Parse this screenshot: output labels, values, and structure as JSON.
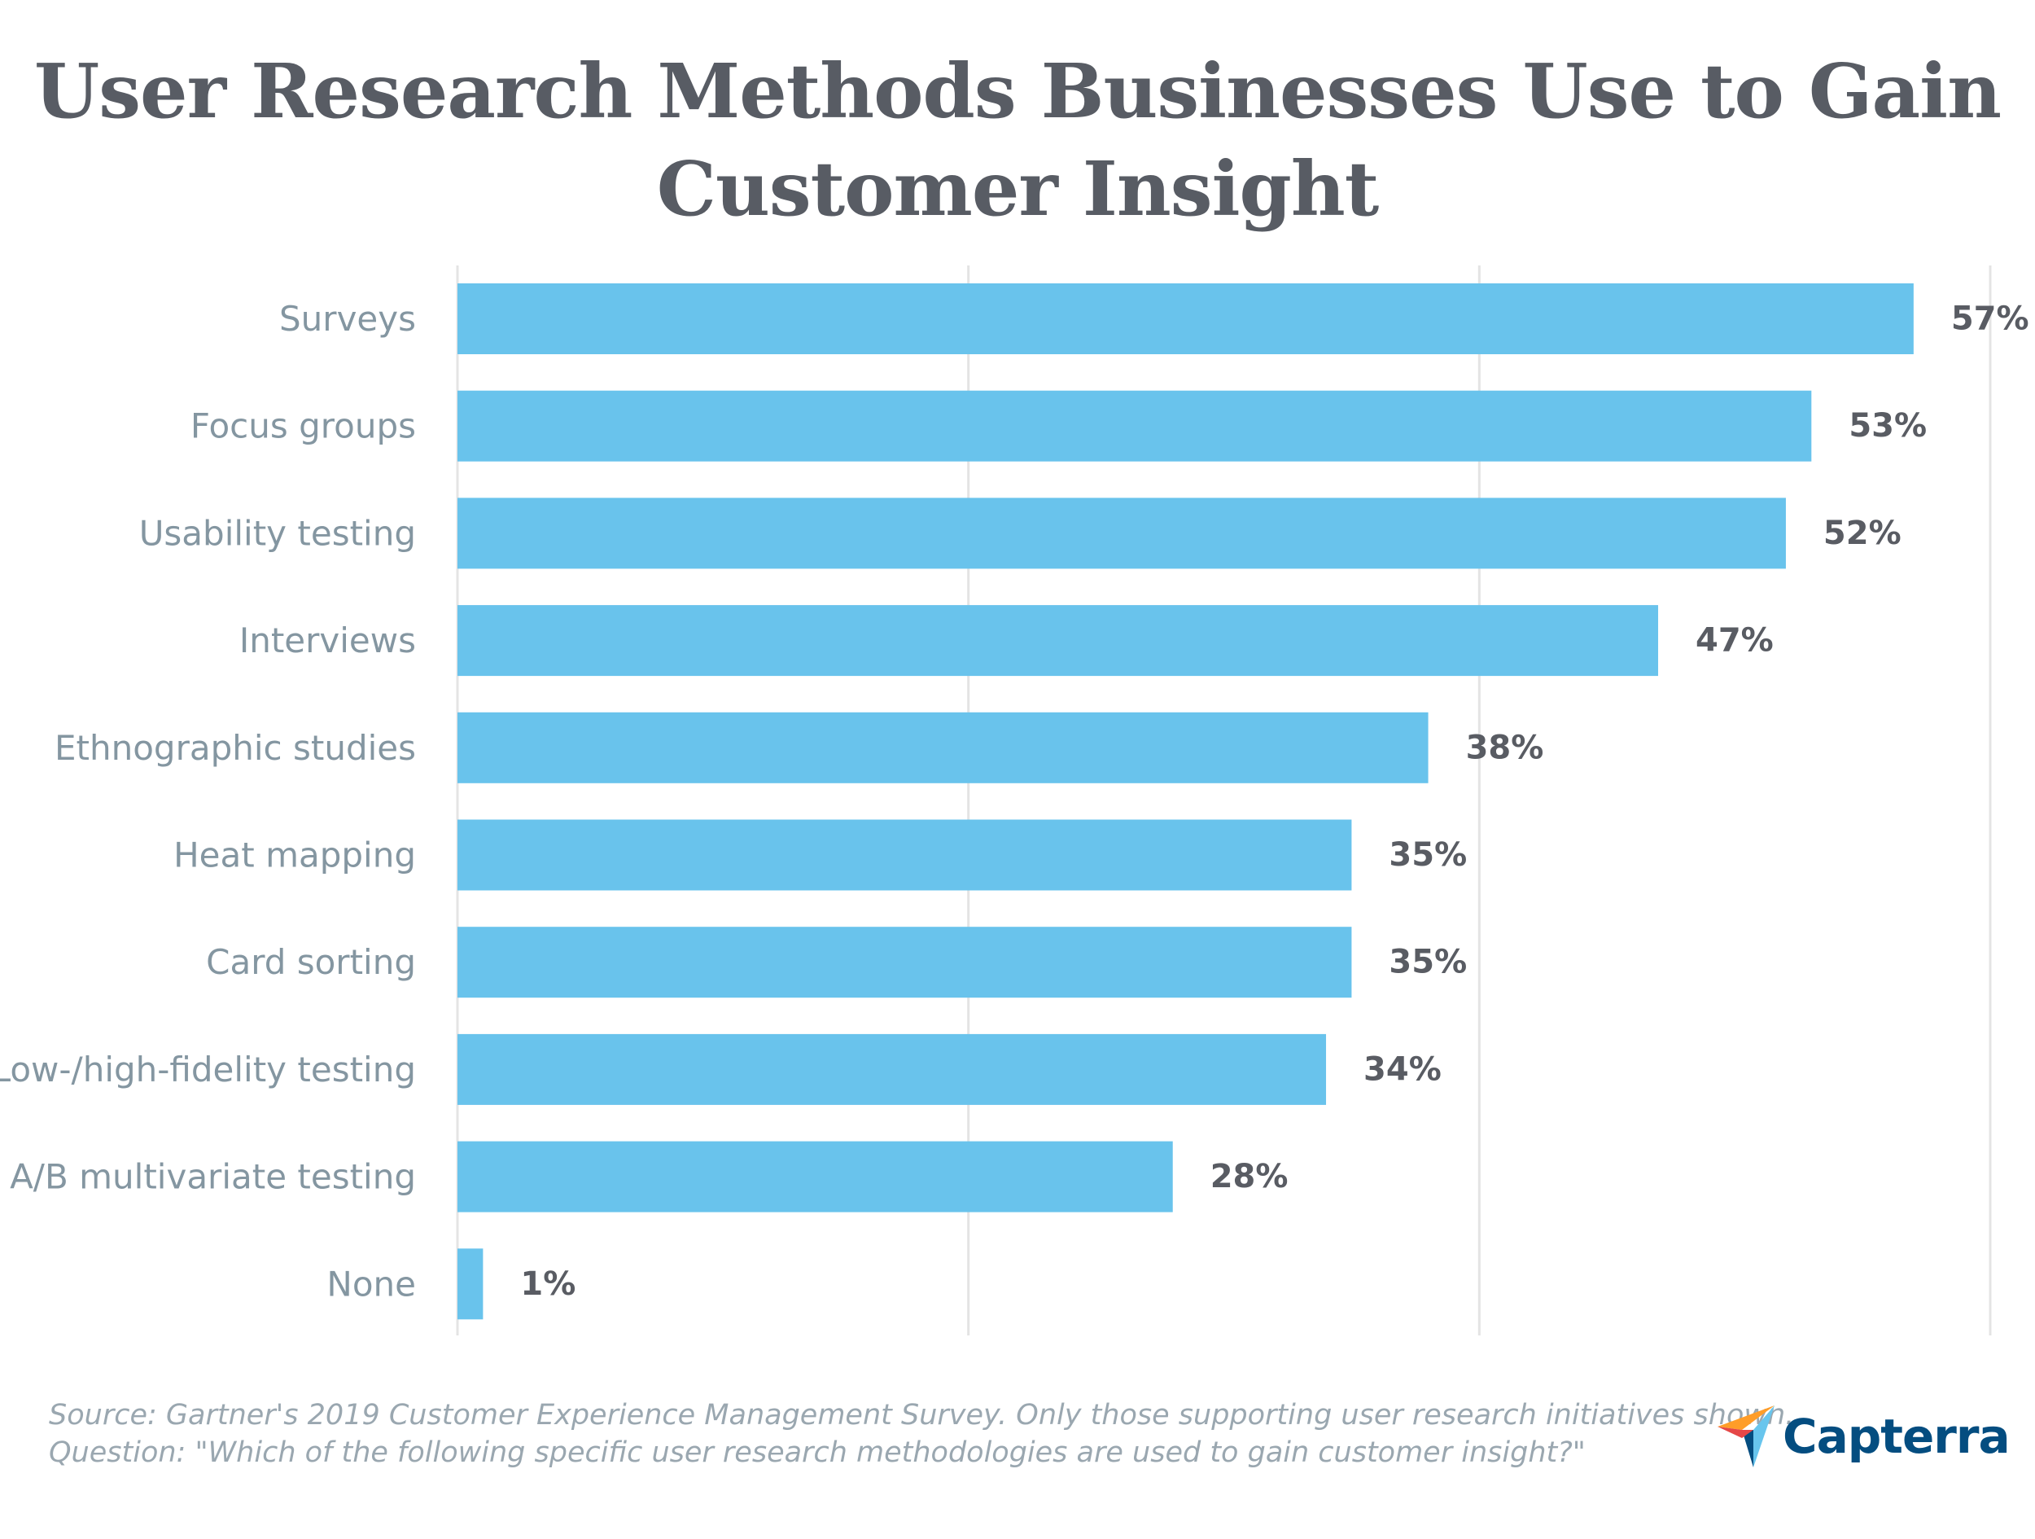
{
  "title": "User Research Methods Businesses Use to Gain Customer Insight",
  "chart_data": {
    "type": "bar",
    "orientation": "horizontal",
    "categories": [
      "Surveys",
      "Focus groups",
      "Usability testing",
      "Interviews",
      "Ethnographic studies",
      "Heat mapping",
      "Card sorting",
      "Low-/high-fidelity testing",
      "A/B multivariate testing",
      "None"
    ],
    "values": [
      57,
      53,
      52,
      47,
      38,
      35,
      35,
      34,
      28,
      1
    ],
    "value_labels": [
      "57%",
      "53%",
      "52%",
      "47%",
      "38%",
      "35%",
      "35%",
      "34%",
      "28%",
      "1%"
    ],
    "xlim": [
      0,
      60
    ],
    "grid": true,
    "bar_color": "#69c3ec"
  },
  "footer": {
    "source": "Source: Gartner's 2019 Customer Experience Management Survey. Only those supporting user research initiatives shown.",
    "question": "Question: \"Which of the following specific user research methodologies are used to gain customer insight?\""
  },
  "logo": {
    "text": "Capterra",
    "icon": "capterra-arrow-icon",
    "colors": [
      "#ff9d28",
      "#68c5ed",
      "#044d80",
      "#e54747"
    ]
  }
}
